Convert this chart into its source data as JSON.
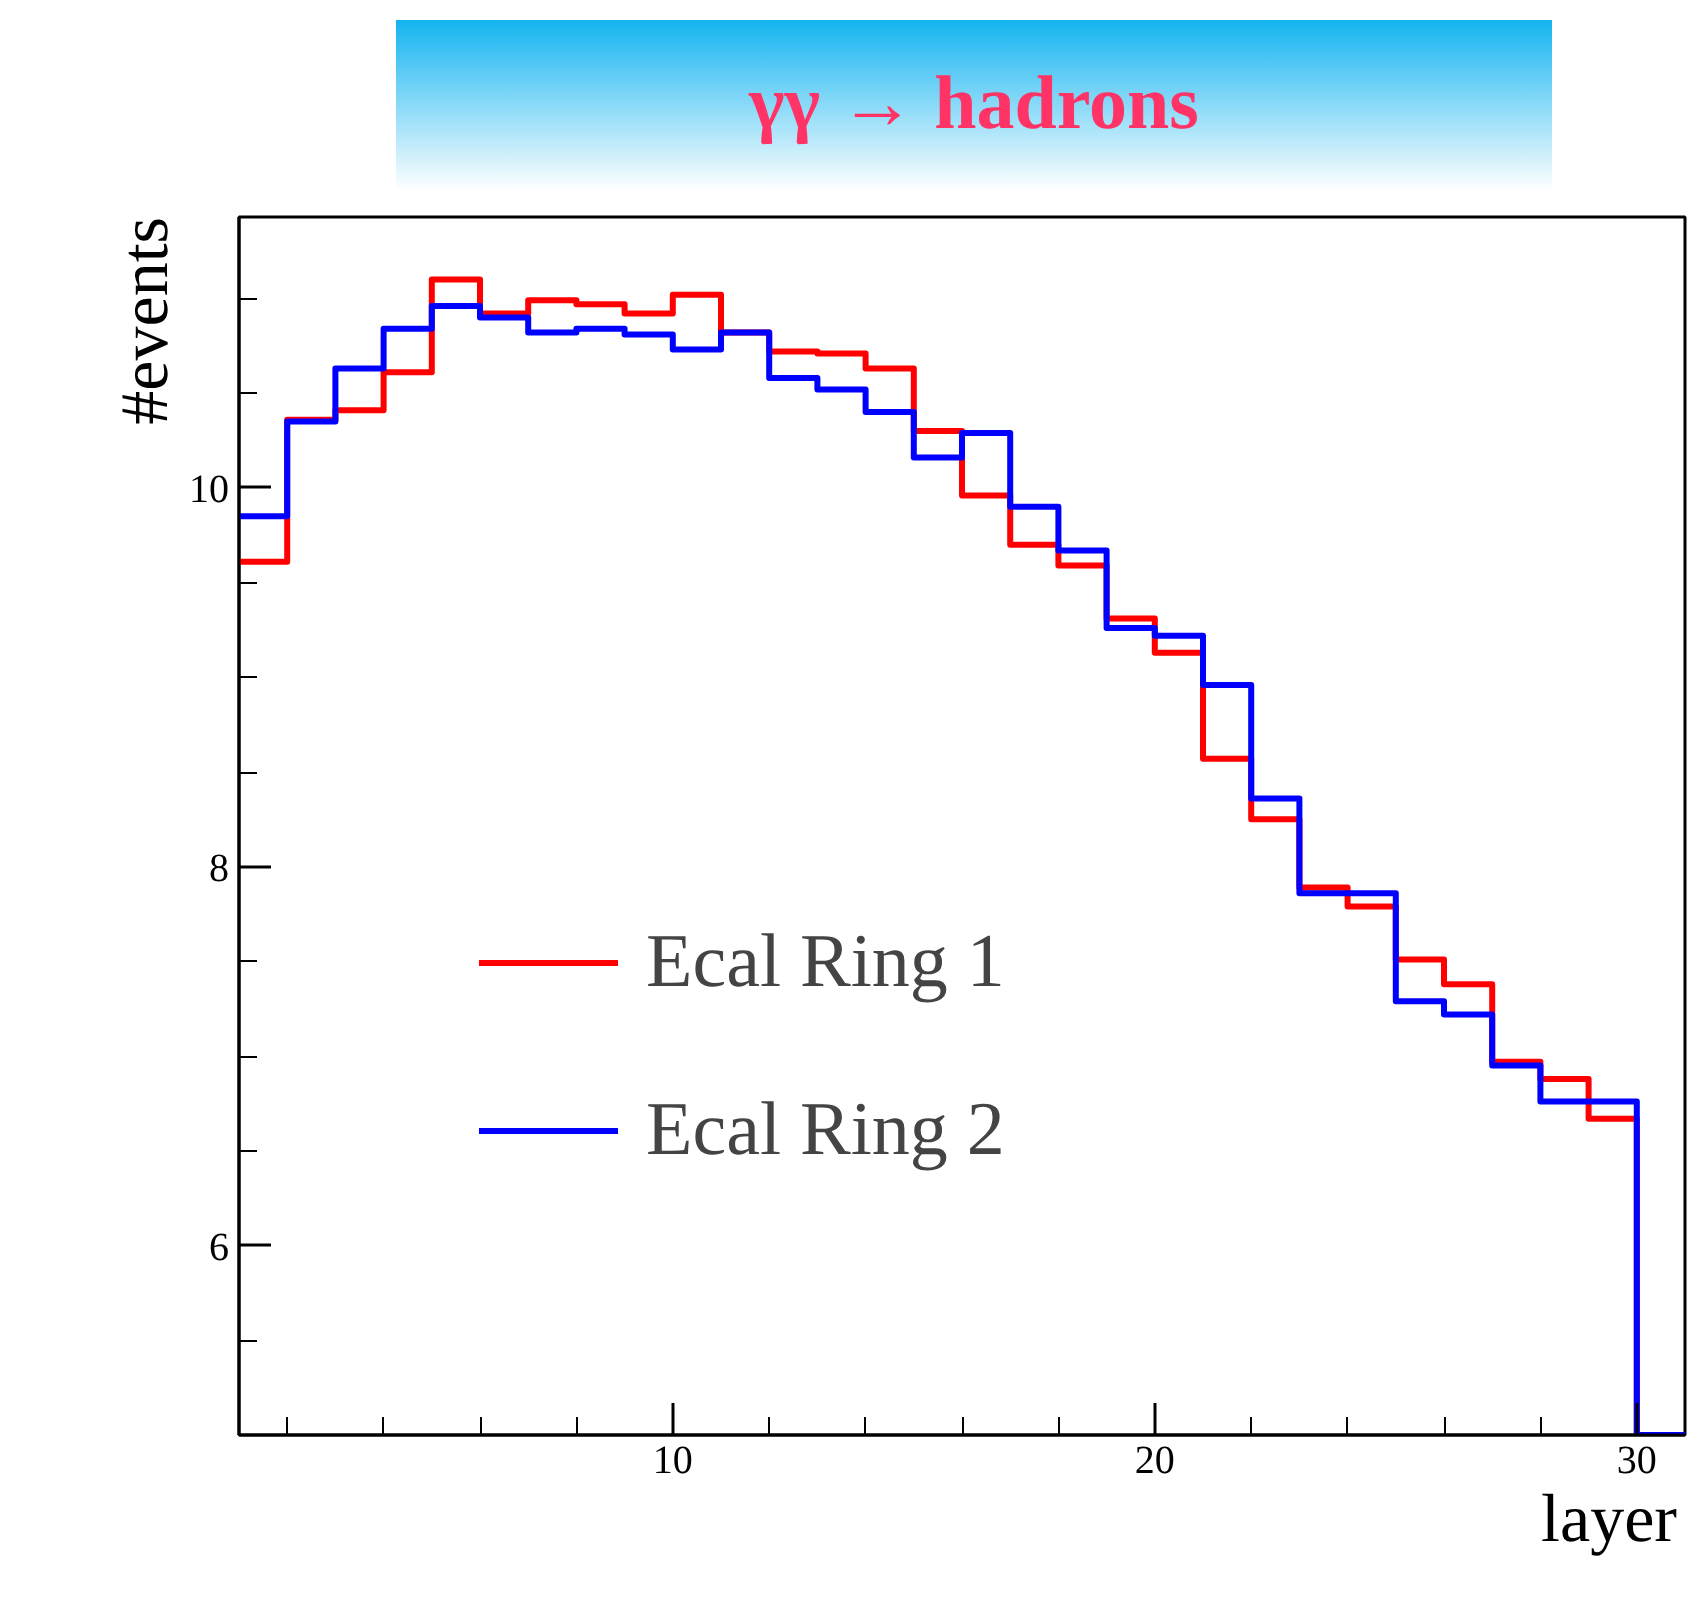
{
  "chart_data": {
    "type": "histogram",
    "title": "γγ → hadrons",
    "xlabel": "layer",
    "ylabel": "#events",
    "bins": [
      1,
      2,
      3,
      4,
      5,
      6,
      7,
      8,
      9,
      10,
      11,
      12,
      13,
      14,
      15,
      16,
      17,
      18,
      19,
      20,
      21,
      22,
      23,
      24,
      25,
      26,
      27,
      28,
      29,
      30,
      31
    ],
    "series": [
      {
        "name": "Ecal Ring 1",
        "color": "#ff0000",
        "values": [
          9.61,
          10.36,
          10.41,
          10.61,
          11.1,
          10.92,
          10.99,
          10.97,
          10.92,
          11.02,
          10.82,
          10.72,
          10.71,
          10.63,
          10.3,
          9.96,
          9.7,
          9.59,
          9.31,
          9.13,
          8.57,
          8.25,
          7.89,
          7.79,
          7.51,
          7.38,
          6.97,
          6.88,
          6.67,
          5.0
        ]
      },
      {
        "name": "Ecal Ring 2",
        "color": "#0000ff",
        "values": [
          9.85,
          10.35,
          10.63,
          10.84,
          10.96,
          10.9,
          10.82,
          10.84,
          10.81,
          10.73,
          10.82,
          10.58,
          10.52,
          10.4,
          10.16,
          10.29,
          9.9,
          9.67,
          9.26,
          9.22,
          8.96,
          8.36,
          7.86,
          7.86,
          7.29,
          7.22,
          6.95,
          6.76,
          6.76,
          5.0
        ]
      }
    ],
    "xlim": [
      1,
      31
    ],
    "ylim": [
      5,
      11.43
    ],
    "xticks": [
      {
        "value": 2,
        "label": null
      },
      {
        "value": 4,
        "label": null
      },
      {
        "value": 6,
        "label": null
      },
      {
        "value": 8,
        "label": null
      },
      10,
      {
        "value": 12,
        "label": null
      },
      {
        "value": 14,
        "label": null
      },
      {
        "value": 16,
        "label": null
      },
      {
        "value": 18,
        "label": null
      },
      20,
      {
        "value": 22,
        "label": null
      },
      {
        "value": 24,
        "label": null
      },
      {
        "value": 26,
        "label": null
      },
      {
        "value": 28,
        "label": null
      },
      30
    ],
    "yticks": [
      {
        "value": 5.5,
        "label": null
      },
      6,
      {
        "value": 6.5,
        "label": null
      },
      {
        "value": 7,
        "label": null
      },
      {
        "value": 7.5,
        "label": null
      },
      8,
      {
        "value": 8.5,
        "label": null
      },
      {
        "value": 9,
        "label": null
      },
      {
        "value": 9.5,
        "label": null
      },
      10,
      {
        "value": 10.5,
        "label": null
      },
      {
        "value": 11,
        "label": null
      }
    ],
    "grid": false,
    "legend": "left",
    "line_style": "solid"
  }
}
